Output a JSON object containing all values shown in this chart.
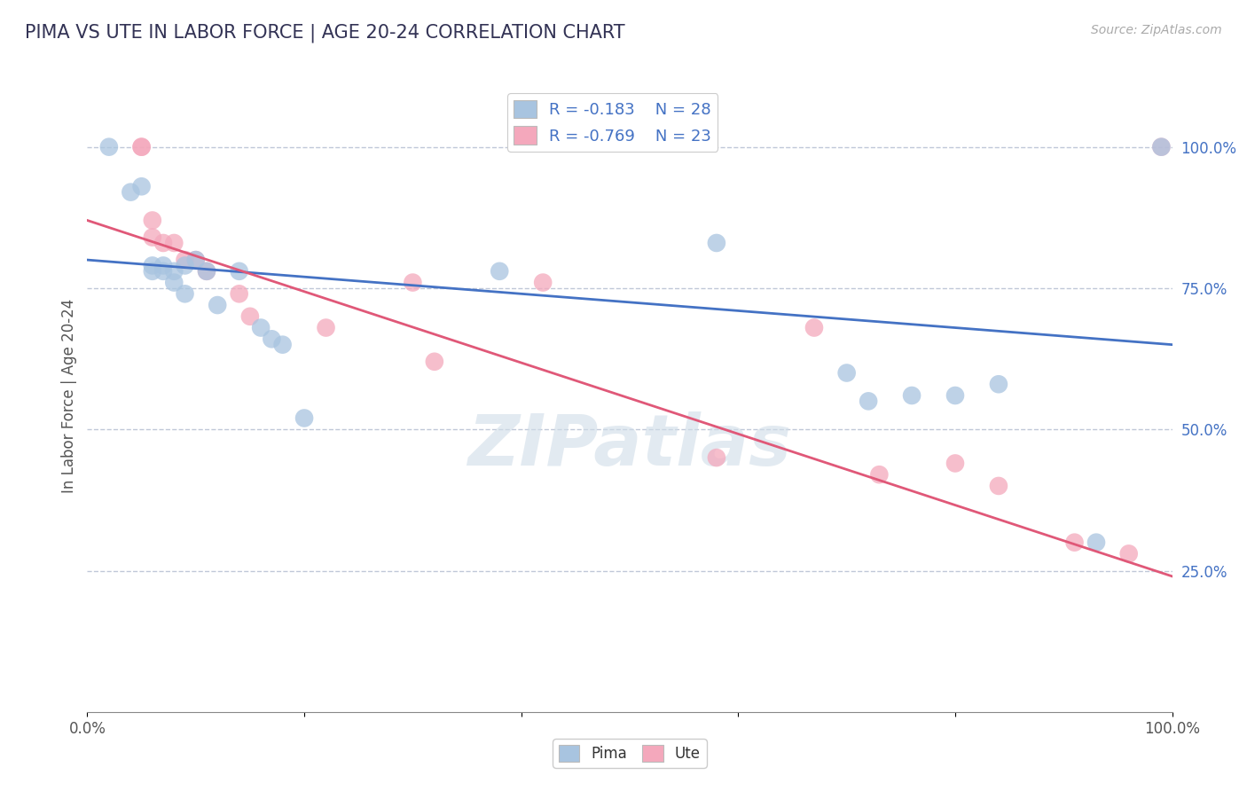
{
  "title": "PIMA VS UTE IN LABOR FORCE | AGE 20-24 CORRELATION CHART",
  "source": "Source: ZipAtlas.com",
  "ylabel": "In Labor Force | Age 20-24",
  "xlim": [
    0.0,
    1.0
  ],
  "ylim": [
    0.0,
    1.12
  ],
  "right_ytick_labels": [
    "25.0%",
    "50.0%",
    "75.0%",
    "100.0%"
  ],
  "right_ytick_values": [
    0.25,
    0.5,
    0.75,
    1.0
  ],
  "legend_r_pima": "R = -0.183",
  "legend_n_pima": "N = 28",
  "legend_r_ute": "R = -0.769",
  "legend_n_ute": "N = 23",
  "pima_color": "#a8c4e0",
  "ute_color": "#f4a8bc",
  "pima_line_color": "#4472c4",
  "ute_line_color": "#e05878",
  "watermark": "ZIPatlas",
  "bg_color": "#ffffff",
  "grid_color": "#c0c8d8",
  "pima_x": [
    0.02,
    0.04,
    0.05,
    0.06,
    0.06,
    0.07,
    0.07,
    0.08,
    0.08,
    0.09,
    0.09,
    0.1,
    0.11,
    0.12,
    0.14,
    0.16,
    0.17,
    0.18,
    0.2,
    0.38,
    0.58,
    0.7,
    0.72,
    0.76,
    0.8,
    0.84,
    0.93,
    0.99
  ],
  "pima_y": [
    1.0,
    0.92,
    0.93,
    0.79,
    0.78,
    0.79,
    0.78,
    0.78,
    0.76,
    0.79,
    0.74,
    0.8,
    0.78,
    0.72,
    0.78,
    0.68,
    0.66,
    0.65,
    0.52,
    0.78,
    0.83,
    0.6,
    0.55,
    0.56,
    0.56,
    0.58,
    0.3,
    1.0
  ],
  "ute_x": [
    0.05,
    0.05,
    0.06,
    0.06,
    0.07,
    0.08,
    0.09,
    0.1,
    0.11,
    0.14,
    0.15,
    0.22,
    0.3,
    0.32,
    0.42,
    0.58,
    0.67,
    0.73,
    0.8,
    0.84,
    0.91,
    0.96,
    0.99
  ],
  "ute_y": [
    1.0,
    1.0,
    0.87,
    0.84,
    0.83,
    0.83,
    0.8,
    0.8,
    0.78,
    0.74,
    0.7,
    0.68,
    0.76,
    0.62,
    0.76,
    0.45,
    0.68,
    0.42,
    0.44,
    0.4,
    0.3,
    0.28,
    1.0
  ],
  "pima_line_x0": 0.0,
  "pima_line_y0": 0.8,
  "pima_line_x1": 1.0,
  "pima_line_y1": 0.65,
  "ute_line_x0": 0.0,
  "ute_line_y0": 0.87,
  "ute_line_x1": 1.0,
  "ute_line_y1": 0.24
}
